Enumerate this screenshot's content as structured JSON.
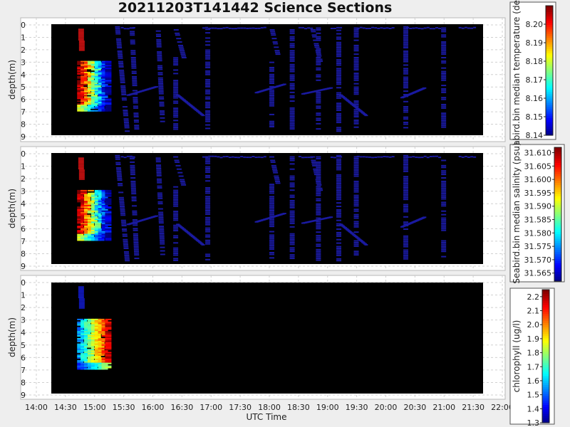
{
  "title": "20211203T141442 Science Sections",
  "colors": {
    "background": "#eeeeee",
    "plot_bg": "#000000",
    "panel_bg": "#ffffff",
    "low": "#0000aa",
    "high": "#aa0000"
  },
  "chart_data": [
    {
      "type": "heatmap",
      "xlabel": "UTC Time",
      "ylabel": "depth(m)",
      "ylim": [
        0,
        9
      ],
      "y_inverted": true,
      "x_ticks": [
        "14:00",
        "14:30",
        "15:00",
        "15:30",
        "16:00",
        "16:30",
        "17:00",
        "17:30",
        "18:00",
        "18:30",
        "19:00",
        "19:30",
        "20:00",
        "20:30",
        "21:00",
        "21:30",
        "22:00"
      ],
      "y_ticks": [
        "0",
        "1",
        "2",
        "3",
        "4",
        "5",
        "6",
        "7",
        "8",
        "9"
      ],
      "colorbar": {
        "label": "Seabird.bin median temperature (degC)",
        "min": 8.14,
        "max": 8.21,
        "ticks": [
          "8.14",
          "8.15",
          "8.16",
          "8.17",
          "8.18",
          "8.19",
          "8.20"
        ]
      },
      "grid": true
    },
    {
      "type": "heatmap",
      "xlabel": "UTC Time",
      "ylabel": "depth(m)",
      "ylim": [
        0,
        9
      ],
      "y_inverted": true,
      "x_ticks": [
        "14:00",
        "14:30",
        "15:00",
        "15:30",
        "16:00",
        "16:30",
        "17:00",
        "17:30",
        "18:00",
        "18:30",
        "19:00",
        "19:30",
        "20:00",
        "20:30",
        "21:00",
        "21:30",
        "22:00"
      ],
      "y_ticks": [
        "0",
        "1",
        "2",
        "3",
        "4",
        "5",
        "6",
        "7",
        "8",
        "9"
      ],
      "colorbar": {
        "label": "Seabird.bin median salinity (psu)",
        "min": 31.562,
        "max": 31.612,
        "ticks": [
          "31.565",
          "31.570",
          "31.575",
          "31.580",
          "31.585",
          "31.590",
          "31.595",
          "31.600",
          "31.605",
          "31.610"
        ]
      },
      "grid": true
    },
    {
      "type": "heatmap",
      "xlabel": "UTC Time",
      "ylabel": "depth(m)",
      "ylim": [
        0,
        9
      ],
      "y_inverted": true,
      "x_ticks": [
        "14:00",
        "14:30",
        "15:00",
        "15:30",
        "16:00",
        "16:30",
        "17:00",
        "17:30",
        "18:00",
        "18:30",
        "19:00",
        "19:30",
        "20:00",
        "20:30",
        "21:00",
        "21:30",
        "22:00"
      ],
      "y_ticks": [
        "0",
        "1",
        "2",
        "3",
        "4",
        "5",
        "6",
        "7",
        "8",
        "9"
      ],
      "colorbar": {
        "label": "chlorophyll (ug/l)",
        "min": 1.3,
        "max": 2.25,
        "ticks": [
          "1.3",
          "1.4",
          "1.5",
          "1.6",
          "1.7",
          "1.8",
          "1.9",
          "2.0",
          "2.1",
          "2.2"
        ]
      },
      "grid": true
    }
  ]
}
